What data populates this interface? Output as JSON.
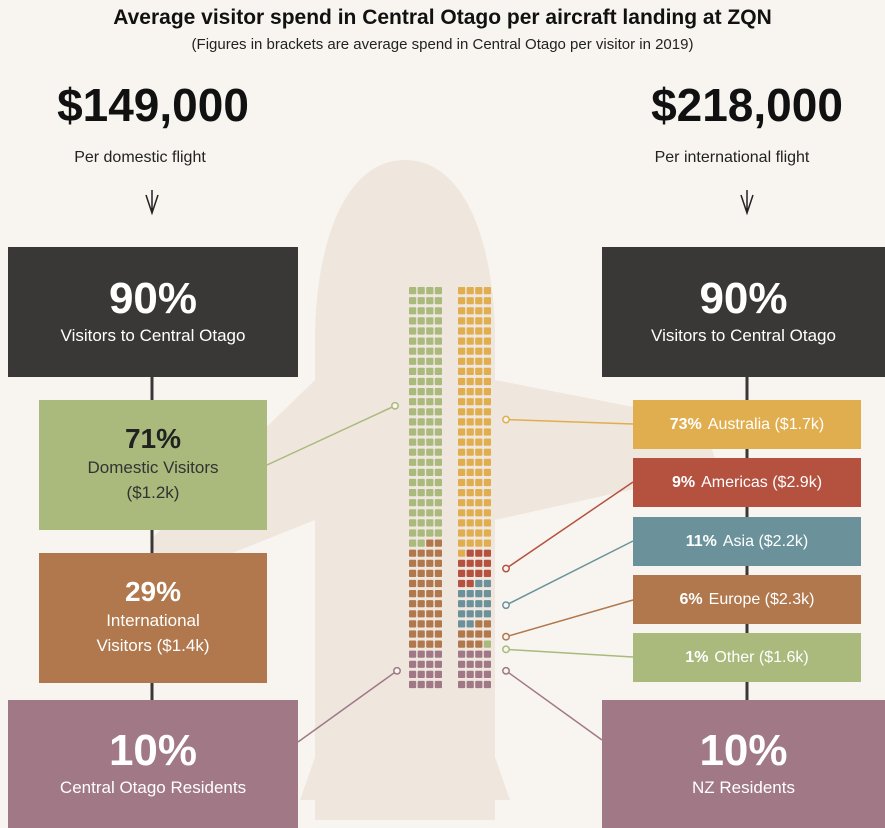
{
  "header": {
    "title": "Average visitor spend in Central Otago per aircraft landing at ZQN",
    "subtitle": "(Figures in brackets are average spend in Central Otago per visitor in 2019)"
  },
  "domestic": {
    "spend": "$149,000",
    "caption": "Per domestic flight",
    "visitors": {
      "value": 90,
      "label": "90%",
      "text": "Visitors to Central Otago",
      "color": "#3a3836"
    },
    "segments": [
      {
        "value": 71,
        "label": "71%",
        "text": "Domestic Visitors ($1.2k)",
        "color": "#a9ba7c"
      },
      {
        "value": 29,
        "label": "29%",
        "text": "International Visitors ($1.4k)",
        "color": "#b0784c"
      }
    ],
    "residents": {
      "value": 10,
      "label": "10%",
      "text": "Central Otago Residents",
      "color": "#a07886"
    }
  },
  "international": {
    "spend": "$218,000",
    "caption": "Per international flight",
    "visitors": {
      "value": 90,
      "label": "90%",
      "text": "Visitors to Central Otago",
      "color": "#3a3836"
    },
    "segments": [
      {
        "value": 73,
        "label": "73%",
        "text": "Australia ($1.7k)",
        "color": "#e0ae4f"
      },
      {
        "value": 9,
        "label": "9%",
        "text": "Americas ($2.9k)",
        "color": "#b5523f"
      },
      {
        "value": 11,
        "label": "11%",
        "text": "Asia ($2.2k)",
        "color": "#6b929b"
      },
      {
        "value": 6,
        "label": "6%",
        "text": "Europe ($2.3k)",
        "color": "#b0784c"
      },
      {
        "value": 1,
        "label": "1%",
        "text": "Other ($1.6k)",
        "color": "#a9ba7c"
      }
    ],
    "residents": {
      "value": 10,
      "label": "10%",
      "text": "NZ Residents",
      "color": "#a07886"
    }
  }
}
